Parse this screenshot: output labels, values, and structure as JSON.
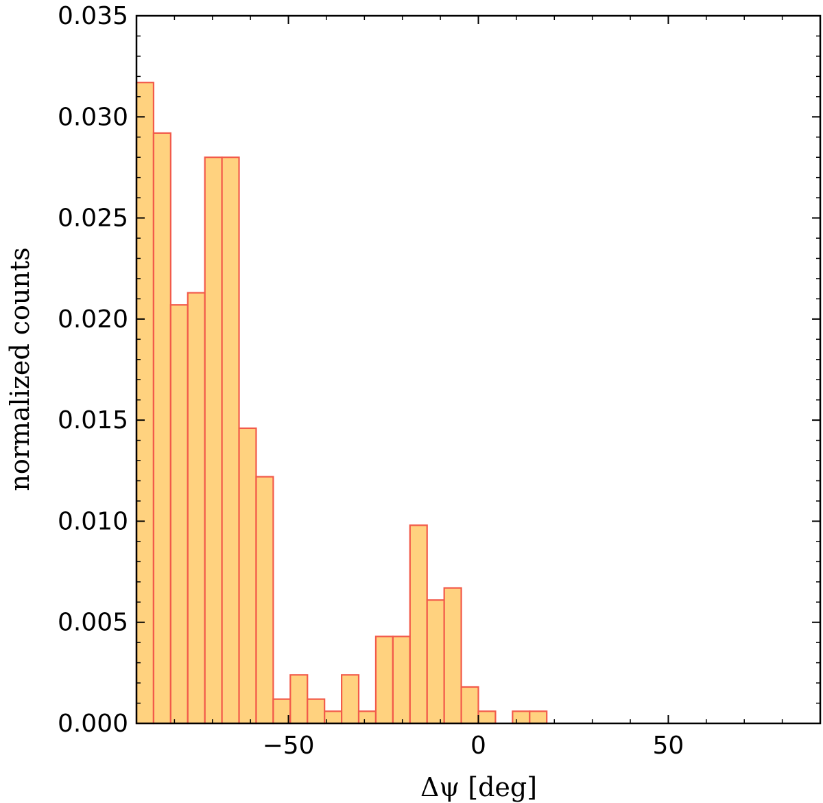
{
  "chart_data": {
    "type": "bar",
    "title": "",
    "xlabel": "Δψ [deg]",
    "ylabel": "normalized counts",
    "xlim": [
      -90,
      90
    ],
    "ylim": [
      0,
      0.035
    ],
    "bin_width": 4.5,
    "bin_start": -90,
    "x_ticks": [
      -50,
      0,
      50
    ],
    "x_tick_labels": [
      "−50",
      "0",
      "50"
    ],
    "y_ticks": [
      0,
      0.005,
      0.01,
      0.015,
      0.02,
      0.025,
      0.03,
      0.035
    ],
    "y_tick_labels": [
      "0.000",
      "0.005",
      "0.010",
      "0.015",
      "0.020",
      "0.025",
      "0.030",
      "0.035"
    ],
    "values": [
      0.0317,
      0.0292,
      0.0207,
      0.0213,
      0.028,
      0.028,
      0.0146,
      0.0122,
      0.0012,
      0.0024,
      0.0012,
      0.0006,
      0.0024,
      0.0006,
      0.0043,
      0.0043,
      0.0098,
      0.0061,
      0.0067,
      0.0018,
      0.0006,
      0.0,
      0.0006,
      0.0006,
      0.0,
      0.0,
      0.0,
      0.0,
      0.0,
      0.0,
      0.0,
      0.0,
      0.0,
      0.0,
      0.0,
      0.0,
      0.0,
      0.0,
      0.0,
      0.0,
      0.0,
      0.0,
      0.0,
      0.0,
      0.0,
      0.0,
      0.0,
      0.0,
      0.0,
      0.0,
      0.0,
      0.0,
      0.0,
      0.0,
      0.0,
      0.0,
      0.0,
      0.0,
      0.0,
      0.0,
      0.0,
      0.0,
      0.0,
      0.0,
      0.0,
      0.0,
      0.0,
      0.0,
      0.0,
      0.0,
      0.0,
      0.0,
      0.0,
      0.0,
      0.0,
      0.0,
      0.0,
      0.0,
      0.0,
      0.0,
      0.0,
      0.0,
      0.0,
      0.0,
      0.0,
      0.0,
      0.0,
      0.0
    ],
    "grid": false,
    "legend": "none",
    "colors": {
      "bar_fill": "#ffd27f",
      "bar_edge": "#f25a4a",
      "axes": "#000000"
    }
  }
}
